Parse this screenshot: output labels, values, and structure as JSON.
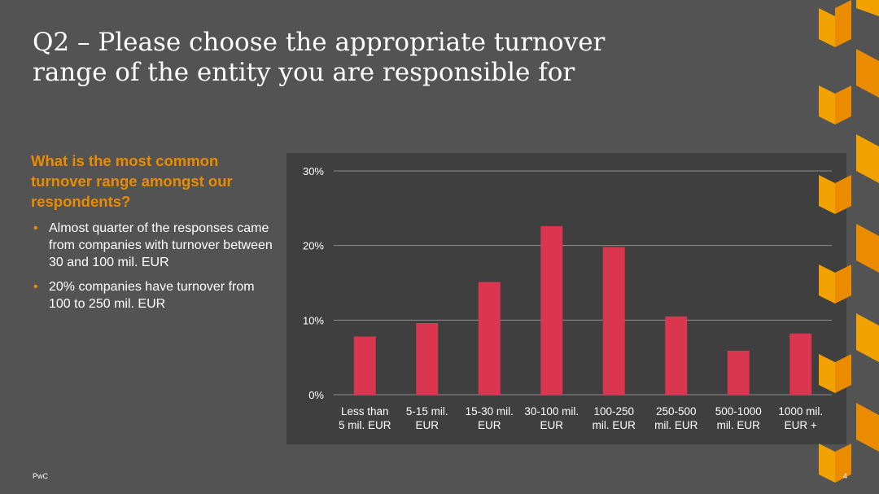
{
  "slide": {
    "title_line1": "Q2 – Please choose the appropriate turnover",
    "title_line2": "range of the entity you are responsible for",
    "question": "What is the most common turnover range amongst our respondents?",
    "bullets": [
      "Almost quarter of the responses came from companies with turnover between 30 and 100 mil. EUR",
      "20% companies have turnover from 100 to 250 mil. EUR"
    ],
    "footer_brand": "PwC",
    "page_number": "4",
    "bullet_glyph": "•"
  },
  "colors": {
    "background": "#535353",
    "accent_orange": "#eb8c00",
    "bar_color": "#db3650",
    "chart_background": "#3f3f3f",
    "gridline": "#8c8c8c"
  },
  "chart_data": {
    "type": "bar",
    "categories": [
      [
        "Less than",
        "5 mil. EUR"
      ],
      [
        "5-15 mil.",
        "EUR"
      ],
      [
        "15-30 mil.",
        "EUR"
      ],
      [
        "30-100 mil.",
        "EUR"
      ],
      [
        "100-250",
        "mil. EUR"
      ],
      [
        "250-500",
        "mil. EUR"
      ],
      [
        "500-1000",
        "mil. EUR"
      ],
      [
        "1000 mil.",
        "EUR +"
      ]
    ],
    "values": [
      7.8,
      9.6,
      15.1,
      22.6,
      19.8,
      10.5,
      5.9,
      8.2
    ],
    "ylim": [
      0,
      30
    ],
    "yticks": [
      0,
      10,
      20,
      30
    ],
    "ytick_labels": [
      "0%",
      "10%",
      "20%",
      "30%"
    ],
    "grid": true,
    "legend": false
  }
}
